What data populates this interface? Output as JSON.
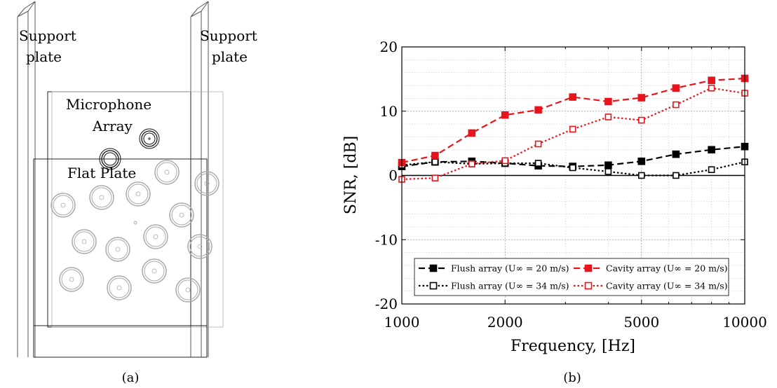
{
  "panel_a": {
    "labels": {
      "support_left": [
        "Support",
        "plate"
      ],
      "support_right": [
        "Support",
        "plate"
      ],
      "microphone_array": [
        "Microphone",
        "Array"
      ],
      "flat_plate": "Flat Plate"
    },
    "caption": "(a)"
  },
  "panel_b": {
    "caption": "(b)"
  },
  "chart_data": {
    "type": "line",
    "xlabel": "Frequency, [Hz]",
    "ylabel": "SNR, [dB]",
    "xscale": "log",
    "xlim": [
      1000,
      10000
    ],
    "ylim": [
      -20,
      20
    ],
    "xticks": [
      1000,
      2000,
      5000,
      10000
    ],
    "yticks": [
      -20,
      -10,
      0,
      10,
      20
    ],
    "grid": "major and minor, dotted",
    "legend_position": "bottom",
    "x": [
      1000,
      1250,
      1600,
      2000,
      2500,
      3150,
      4000,
      5000,
      6300,
      8000,
      10000
    ],
    "series": [
      {
        "name": "Flush array (U∞ = 20 m/s)",
        "color": "#000000",
        "line": "dashed",
        "marker": "filled-square",
        "values": [
          1.4,
          2.1,
          2.2,
          1.9,
          1.5,
          1.4,
          1.6,
          2.2,
          3.3,
          4.0,
          4.5
        ]
      },
      {
        "name": "Flush array (U∞ = 34 m/s)",
        "color": "#000000",
        "line": "dotted",
        "marker": "open-square",
        "values": [
          1.6,
          2.1,
          1.8,
          1.9,
          1.9,
          1.2,
          0.6,
          0.0,
          0.0,
          0.9,
          2.1
        ]
      },
      {
        "name": "Cavity array (U∞ = 20 m/s)",
        "color": "#e8141c",
        "line": "dashed",
        "marker": "filled-square",
        "values": [
          2.0,
          3.1,
          6.6,
          9.4,
          10.2,
          12.2,
          11.5,
          12.1,
          13.6,
          14.8,
          15.1
        ]
      },
      {
        "name": "Cavity array (U∞ = 34 m/s)",
        "color": "#e8141c",
        "line": "dotted",
        "marker": "open-square",
        "values": [
          -0.6,
          -0.4,
          1.8,
          2.3,
          4.9,
          7.2,
          9.1,
          8.6,
          11.0,
          13.6,
          12.8
        ]
      }
    ]
  }
}
